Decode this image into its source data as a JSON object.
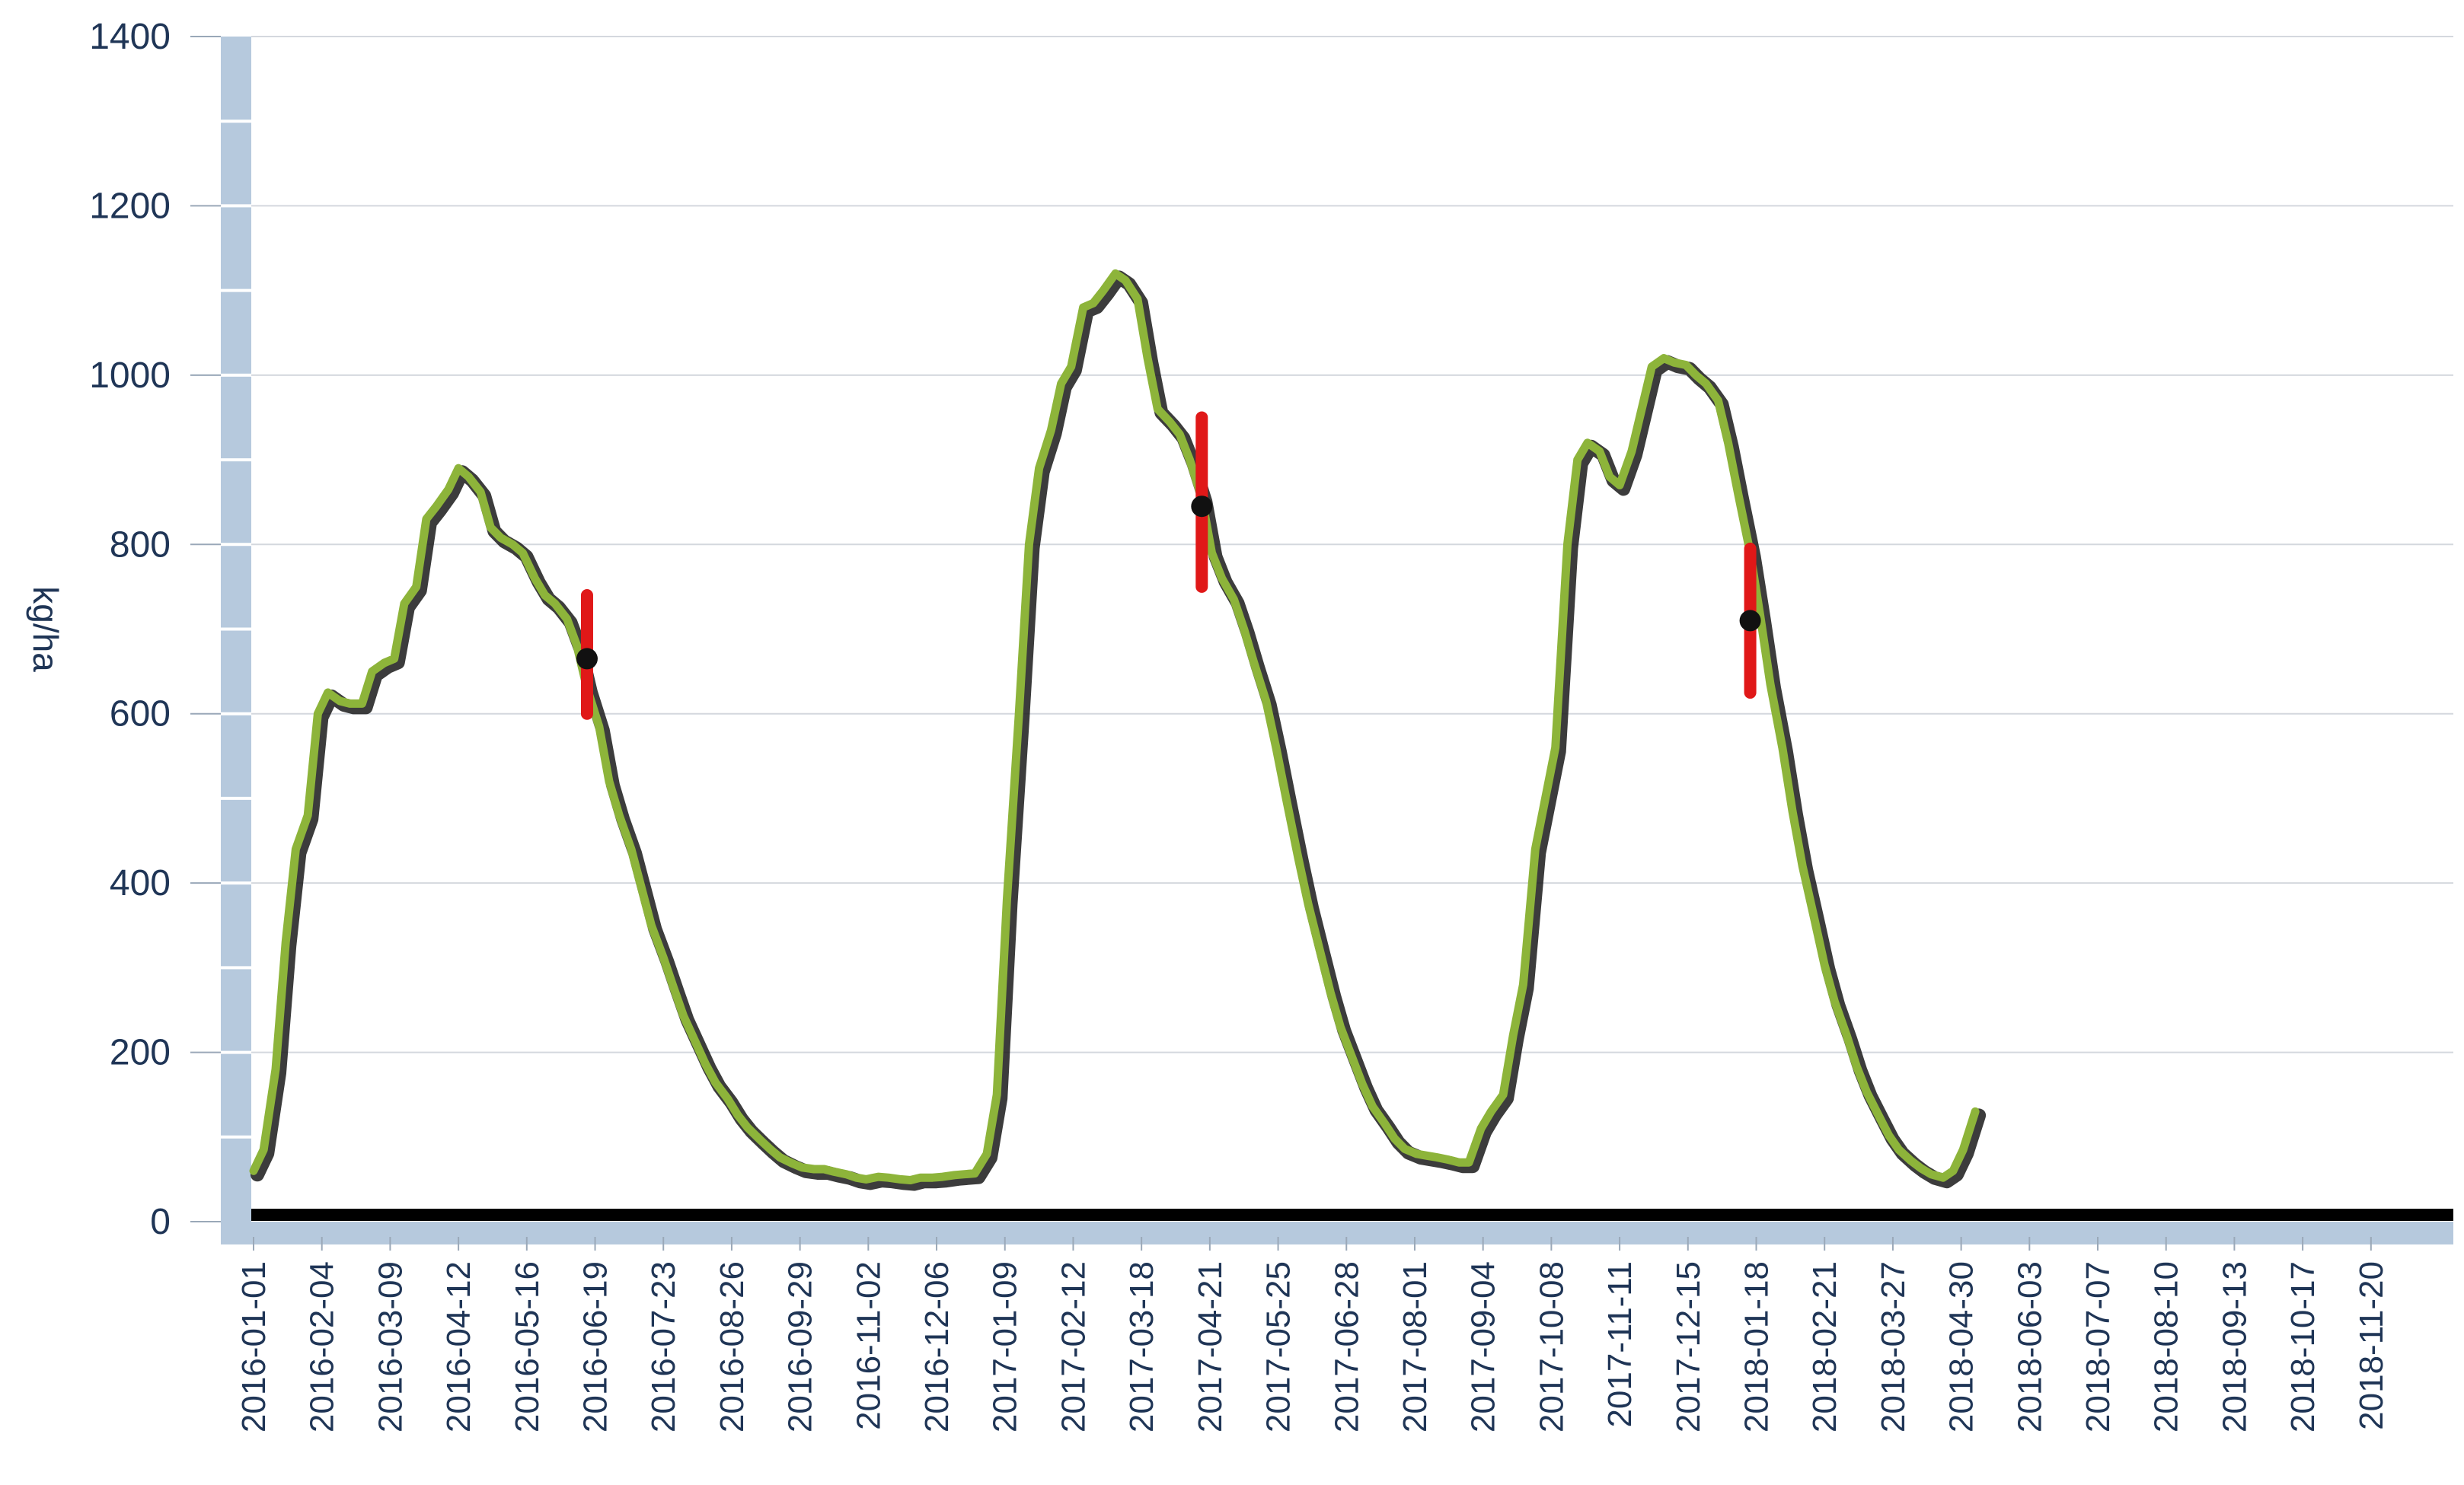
{
  "chart_data": {
    "type": "line",
    "title": "",
    "xlabel": "",
    "ylabel": "kg/ha",
    "ylim": [
      0,
      1400
    ],
    "yticks": [
      0,
      200,
      400,
      600,
      800,
      1000,
      1200,
      1400
    ],
    "grid": true,
    "xlim": [
      "2016-01-01",
      "2018-12-31"
    ],
    "xtick_labels": [
      "2016-01-01",
      "2016-02-04",
      "2016-03-09",
      "2016-04-12",
      "2016-05-16",
      "2016-06-19",
      "2016-07-23",
      "2016-08-26",
      "2016-09-29",
      "2016-11-02",
      "2016-12-06",
      "2017-01-09",
      "2017-02-12",
      "2017-03-18",
      "2017-04-21",
      "2017-05-25",
      "2017-06-28",
      "2017-08-01",
      "2017-09-04",
      "2017-10-08",
      "2017-11-11",
      "2017-12-15",
      "2018-01-18",
      "2018-02-21",
      "2018-03-27",
      "2018-04-30",
      "2018-06-03",
      "2018-07-07",
      "2018-08-10",
      "2018-09-13",
      "2018-10-17",
      "2018-11-20"
    ],
    "colors": {
      "line": "#8db43a",
      "line_shadow": "#1a1a1a",
      "error_bar": "#e01818",
      "marker": "#111111",
      "axis_band": "#b6c9dd",
      "baseline": "#000000",
      "grid": "#d4d8de",
      "text": "#1f3556"
    },
    "series": [
      {
        "points": [
          [
            "2016-01-01",
            60
          ],
          [
            "2016-01-06",
            85
          ],
          [
            "2016-01-12",
            180
          ],
          [
            "2016-01-17",
            330
          ],
          [
            "2016-01-22",
            440
          ],
          [
            "2016-01-28",
            480
          ],
          [
            "2016-02-02",
            600
          ],
          [
            "2016-02-07",
            625
          ],
          [
            "2016-02-13",
            615
          ],
          [
            "2016-02-18",
            612
          ],
          [
            "2016-02-24",
            612
          ],
          [
            "2016-02-29",
            650
          ],
          [
            "2016-03-06",
            660
          ],
          [
            "2016-03-11",
            665
          ],
          [
            "2016-03-16",
            730
          ],
          [
            "2016-03-22",
            750
          ],
          [
            "2016-03-27",
            830
          ],
          [
            "2016-04-01",
            845
          ],
          [
            "2016-04-07",
            865
          ],
          [
            "2016-04-12",
            890
          ],
          [
            "2016-04-17",
            880
          ],
          [
            "2016-04-23",
            862
          ],
          [
            "2016-04-28",
            820
          ],
          [
            "2016-05-03",
            808
          ],
          [
            "2016-05-09",
            800
          ],
          [
            "2016-05-14",
            790
          ],
          [
            "2016-05-20",
            760
          ],
          [
            "2016-05-25",
            740
          ],
          [
            "2016-05-30",
            730
          ],
          [
            "2016-06-05",
            712
          ],
          [
            "2016-06-10",
            680
          ],
          [
            "2016-06-15",
            630
          ],
          [
            "2016-06-21",
            585
          ],
          [
            "2016-06-26",
            520
          ],
          [
            "2016-07-01",
            480
          ],
          [
            "2016-07-07",
            440
          ],
          [
            "2016-07-12",
            395
          ],
          [
            "2016-07-17",
            350
          ],
          [
            "2016-07-23",
            312
          ],
          [
            "2016-07-28",
            277
          ],
          [
            "2016-08-02",
            243
          ],
          [
            "2016-08-08",
            212
          ],
          [
            "2016-08-13",
            186
          ],
          [
            "2016-08-18",
            164
          ],
          [
            "2016-08-24",
            145
          ],
          [
            "2016-08-29",
            126
          ],
          [
            "2016-09-03",
            111
          ],
          [
            "2016-09-09",
            97
          ],
          [
            "2016-09-14",
            86
          ],
          [
            "2016-09-19",
            76
          ],
          [
            "2016-09-25",
            69
          ],
          [
            "2016-09-30",
            64
          ],
          [
            "2016-10-06",
            62
          ],
          [
            "2016-10-11",
            62
          ],
          [
            "2016-10-16",
            59
          ],
          [
            "2016-10-22",
            56
          ],
          [
            "2016-10-27",
            52
          ],
          [
            "2016-11-01",
            50
          ],
          [
            "2016-11-07",
            53
          ],
          [
            "2016-11-12",
            52
          ],
          [
            "2016-11-18",
            50
          ],
          [
            "2016-11-23",
            49
          ],
          [
            "2016-11-28",
            52
          ],
          [
            "2016-12-04",
            52
          ],
          [
            "2016-12-09",
            53
          ],
          [
            "2016-12-15",
            55
          ],
          [
            "2016-12-20",
            56
          ],
          [
            "2016-12-25",
            57
          ],
          [
            "2016-12-31",
            80
          ],
          [
            "2017-01-05",
            150
          ],
          [
            "2017-01-10",
            380
          ],
          [
            "2017-01-16",
            600
          ],
          [
            "2017-01-21",
            800
          ],
          [
            "2017-01-26",
            890
          ],
          [
            "2017-02-01",
            935
          ],
          [
            "2017-02-06",
            990
          ],
          [
            "2017-02-11",
            1010
          ],
          [
            "2017-02-17",
            1080
          ],
          [
            "2017-02-22",
            1085
          ],
          [
            "2017-02-27",
            1100
          ],
          [
            "2017-03-05",
            1120
          ],
          [
            "2017-03-10",
            1112
          ],
          [
            "2017-03-16",
            1090
          ],
          [
            "2017-03-21",
            1020
          ],
          [
            "2017-03-26",
            960
          ],
          [
            "2017-04-01",
            945
          ],
          [
            "2017-04-06",
            930
          ],
          [
            "2017-04-11",
            900
          ],
          [
            "2017-04-17",
            855
          ],
          [
            "2017-04-22",
            790
          ],
          [
            "2017-04-27",
            760
          ],
          [
            "2017-05-03",
            735
          ],
          [
            "2017-05-08",
            700
          ],
          [
            "2017-05-13",
            660
          ],
          [
            "2017-05-19",
            615
          ],
          [
            "2017-05-24",
            560
          ],
          [
            "2017-05-29",
            500
          ],
          [
            "2017-06-04",
            430
          ],
          [
            "2017-06-09",
            375
          ],
          [
            "2017-06-15",
            318
          ],
          [
            "2017-06-20",
            271
          ],
          [
            "2017-06-25",
            230
          ],
          [
            "2017-07-01",
            193
          ],
          [
            "2017-07-06",
            162
          ],
          [
            "2017-07-11",
            136
          ],
          [
            "2017-07-17",
            116
          ],
          [
            "2017-07-22",
            98
          ],
          [
            "2017-07-27",
            86
          ],
          [
            "2017-08-02",
            80
          ],
          [
            "2017-08-07",
            78
          ],
          [
            "2017-08-12",
            76
          ],
          [
            "2017-08-18",
            73
          ],
          [
            "2017-08-23",
            70
          ],
          [
            "2017-08-28",
            70
          ],
          [
            "2017-09-03",
            110
          ],
          [
            "2017-09-08",
            130
          ],
          [
            "2017-09-14",
            150
          ],
          [
            "2017-09-19",
            220
          ],
          [
            "2017-09-24",
            280
          ],
          [
            "2017-09-30",
            440
          ],
          [
            "2017-10-05",
            500
          ],
          [
            "2017-10-10",
            560
          ],
          [
            "2017-10-16",
            800
          ],
          [
            "2017-10-21",
            900
          ],
          [
            "2017-10-26",
            920
          ],
          [
            "2017-11-01",
            910
          ],
          [
            "2017-11-06",
            880
          ],
          [
            "2017-11-11",
            870
          ],
          [
            "2017-11-17",
            910
          ],
          [
            "2017-11-22",
            960
          ],
          [
            "2017-11-27",
            1010
          ],
          [
            "2017-12-03",
            1020
          ],
          [
            "2017-12-08",
            1015
          ],
          [
            "2017-12-14",
            1012
          ],
          [
            "2017-12-19",
            1000
          ],
          [
            "2017-12-24",
            990
          ],
          [
            "2017-12-30",
            970
          ],
          [
            "2018-01-04",
            920
          ],
          [
            "2018-01-09",
            860
          ],
          [
            "2018-01-15",
            790
          ],
          [
            "2018-01-20",
            715
          ],
          [
            "2018-01-25",
            635
          ],
          [
            "2018-01-31",
            560
          ],
          [
            "2018-02-05",
            485
          ],
          [
            "2018-02-10",
            420
          ],
          [
            "2018-02-16",
            357
          ],
          [
            "2018-02-21",
            303
          ],
          [
            "2018-02-26",
            260
          ],
          [
            "2018-03-04",
            220
          ],
          [
            "2018-03-09",
            183
          ],
          [
            "2018-03-14",
            153
          ],
          [
            "2018-03-20",
            125
          ],
          [
            "2018-03-25",
            102
          ],
          [
            "2018-03-30",
            85
          ],
          [
            "2018-04-05",
            72
          ],
          [
            "2018-04-10",
            63
          ],
          [
            "2018-04-15",
            56
          ],
          [
            "2018-04-21",
            52
          ],
          [
            "2018-04-26",
            60
          ],
          [
            "2018-05-01",
            85
          ],
          [
            "2018-05-07",
            130
          ]
        ]
      }
    ],
    "error_bars": [
      {
        "x": "2016-06-15",
        "y": 665,
        "low": 600,
        "high": 740
      },
      {
        "x": "2017-04-17",
        "y": 845,
        "low": 750,
        "high": 950
      },
      {
        "x": "2018-01-15",
        "y": 710,
        "low": 625,
        "high": 795
      }
    ]
  }
}
